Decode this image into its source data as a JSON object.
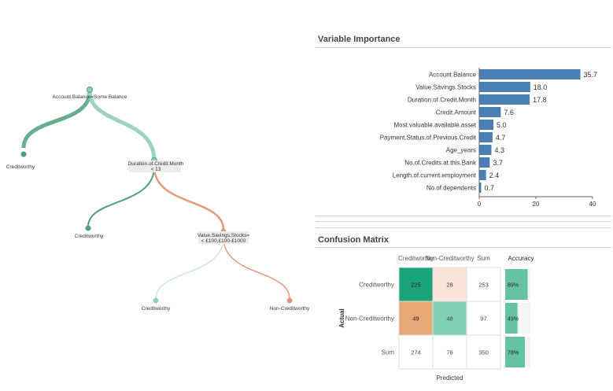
{
  "tree": {
    "nodes": [
      {
        "id": "root",
        "label": "Account.Balance=Some Balance",
        "sublabel": ""
      },
      {
        "id": "n1",
        "label": "Creditworthy",
        "sublabel": ""
      },
      {
        "id": "n2",
        "label": "Duration.of.Credit.Month",
        "sublabel": "< 13"
      },
      {
        "id": "n3",
        "label": "Creditworthy",
        "sublabel": ""
      },
      {
        "id": "n4",
        "label": "Value.Savings.Stocks=",
        "sublabel": "< £100,£100-£1000"
      },
      {
        "id": "n5",
        "label": "Creditworthy",
        "sublabel": ""
      },
      {
        "id": "n6",
        "label": "Non-Creditworthy",
        "sublabel": ""
      }
    ]
  },
  "variable_importance": {
    "title": "Variable Importance"
  },
  "confusion_matrix": {
    "title": "Confusion Matrix"
  },
  "chart_data": [
    {
      "type": "bar",
      "orientation": "horizontal",
      "title": "Variable Importance",
      "categories": [
        "Account.Balance",
        "Value.Savings.Stocks",
        "Duration.of.Credit.Month",
        "Credit.Amount",
        "Most.valuable.available.asset",
        "Payment.Status.of.Previous.Credit",
        "Age_years",
        "No.of.Credits.at.this.Bank",
        "Length.of.current.employment",
        "No.of.dependents"
      ],
      "values": [
        35.7,
        18.0,
        17.8,
        7.6,
        5.0,
        4.7,
        4.3,
        3.7,
        2.4,
        0.7
      ],
      "value_labels": [
        "35.7",
        "18.0",
        "17.8",
        "7.6",
        "5.0",
        "4.7",
        "4.3",
        "3.7",
        "2.4",
        "0.7"
      ],
      "xlim": [
        0,
        40
      ],
      "xticks": [
        "0",
        "20",
        "40"
      ],
      "bar_color": "#4a7fb5"
    },
    {
      "type": "heatmap",
      "title": "Confusion Matrix",
      "col_headers": [
        "Creditworthy",
        "Non-Creditworthy",
        "Sum",
        "Accuracy"
      ],
      "row_headers": [
        "Creditworthy",
        "Non-Creditworthy",
        "Sum"
      ],
      "values": [
        [
          225,
          28,
          253
        ],
        [
          49,
          48,
          97
        ],
        [
          274,
          76,
          350
        ]
      ],
      "value_labels": [
        [
          "225",
          "28",
          "253"
        ],
        [
          "49",
          "48",
          "97"
        ],
        [
          "274",
          "76",
          "350"
        ]
      ],
      "accuracy": [
        89,
        49,
        78
      ],
      "accuracy_labels": [
        "89%",
        "49%",
        "78%"
      ],
      "xlabel": "Predicted",
      "ylabel": "Actual",
      "colors": {
        "correct": "#1aa37a",
        "correct_light": "#7fd0b3",
        "error": "#e9a877",
        "error_light": "#fae5d8",
        "accuracy": "#66c2a5"
      }
    }
  ]
}
